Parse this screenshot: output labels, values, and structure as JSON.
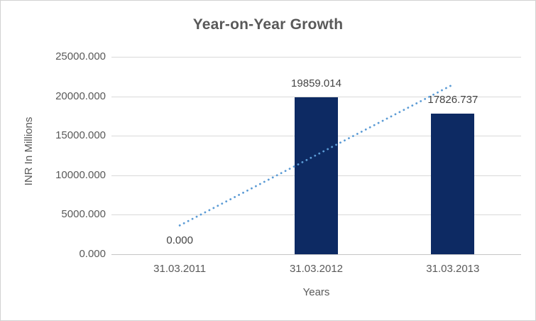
{
  "chart_data": {
    "type": "bar",
    "title": "Year-on-Year Growth",
    "xlabel": "Years",
    "ylabel": "INR In Millions",
    "categories": [
      "31.03.2011",
      "31.03.2012",
      "31.03.2013"
    ],
    "values": [
      0,
      19859.014,
      17826.737
    ],
    "data_labels": [
      "0.000",
      "19859.014",
      "17826.737"
    ],
    "y_ticks": [
      "25000.000",
      "20000.000",
      "15000.000",
      "10000.000",
      "5000.000",
      "0.000"
    ],
    "y_tick_values": [
      25000,
      20000,
      15000,
      10000,
      5000,
      0
    ],
    "ylim": [
      0,
      25000
    ],
    "grid": true,
    "legend": "none",
    "trendline": {
      "type": "linear",
      "style": "dotted",
      "start_value": 3648.5,
      "end_value": 21475.5
    },
    "colors": {
      "bar": "#0d2a63",
      "trendline": "#5b9bd5",
      "gridline": "#d9d9d9",
      "axis_line": "#c6c6c6",
      "title_text": "#595959",
      "axis_text": "#595959",
      "data_label_text": "#444444"
    }
  }
}
